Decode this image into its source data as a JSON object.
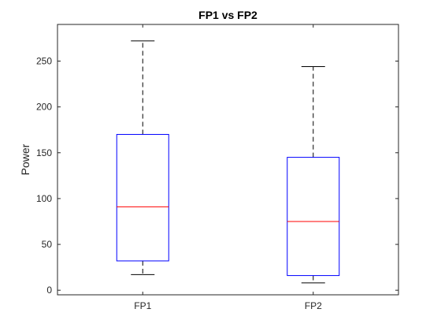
{
  "chart_data": {
    "type": "boxplot",
    "title": "FP1 vs FP2",
    "xlabel": "",
    "ylabel": "Power",
    "categories": [
      "FP1",
      "FP2"
    ],
    "ylim": [
      -5,
      290
    ],
    "yticks": [
      0,
      50,
      100,
      150,
      200,
      250
    ],
    "grid": false,
    "legend": "none",
    "boxes": [
      {
        "category": "FP1",
        "lower_whisker": 17,
        "q1": 32,
        "median": 91,
        "q3": 170,
        "upper_whisker": 272
      },
      {
        "category": "FP2",
        "lower_whisker": 8,
        "q1": 16,
        "median": 75,
        "q3": 145,
        "upper_whisker": 244
      }
    ],
    "colors": {
      "box": "#0000ff",
      "median": "#ff0000",
      "whisker": "#000000",
      "axes": "#262626"
    }
  }
}
